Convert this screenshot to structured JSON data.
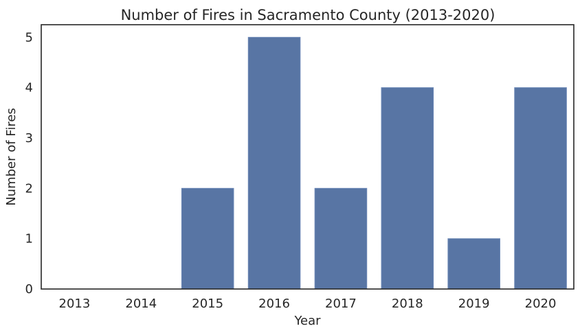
{
  "chart_data": {
    "type": "bar",
    "title": "Number of Fires in Sacramento County (2013-2020)",
    "xlabel": "Year",
    "ylabel": "Number of Fires",
    "categories": [
      "2013",
      "2014",
      "2015",
      "2016",
      "2017",
      "2018",
      "2019",
      "2020"
    ],
    "values": [
      0,
      0,
      2,
      5,
      2,
      4,
      1,
      4
    ],
    "ylim": [
      0,
      5.25
    ],
    "yticks": [
      0,
      1,
      2,
      3,
      4,
      5
    ],
    "grid": false,
    "legend": "none",
    "colors": {
      "bar": "#5875a4",
      "bar_edge": "#6a86b5",
      "axes": "#262626",
      "text": "#262626"
    }
  }
}
